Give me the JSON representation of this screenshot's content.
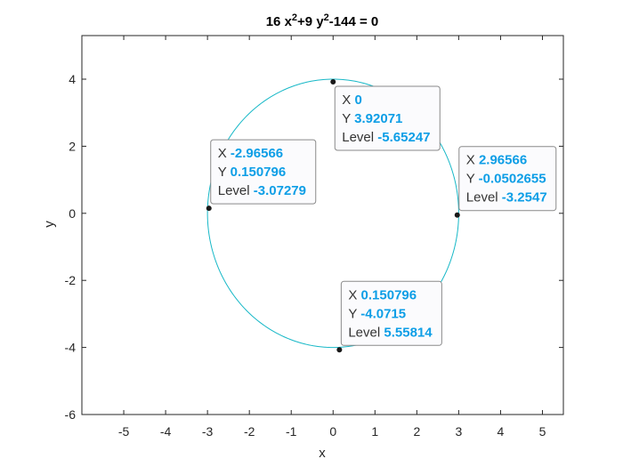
{
  "chart_data": {
    "type": "line",
    "title_parts": [
      {
        "text": "16 x",
        "sup": false
      },
      {
        "text": "2",
        "sup": true
      },
      {
        "text": "+9 y",
        "sup": false
      },
      {
        "text": "2",
        "sup": true
      },
      {
        "text": "-144 = 0",
        "sup": false
      }
    ],
    "xlabel": "x",
    "ylabel": "y",
    "xlim": [
      -6,
      5.5
    ],
    "ylim": [
      -6,
      5.3
    ],
    "xticks": [
      -5,
      -4,
      -3,
      -2,
      -1,
      0,
      1,
      2,
      3,
      4,
      5
    ],
    "yticks": [
      -6,
      -4,
      -2,
      0,
      2,
      4
    ],
    "curve": {
      "type": "ellipse",
      "cx": 0,
      "cy": 0,
      "rx": 3,
      "ry": 4,
      "color": "#17b8c7"
    },
    "datatips": [
      {
        "x": 0,
        "y": 3.92071,
        "rows": [
          {
            "key": "X",
            "value": "0"
          },
          {
            "key": "Y",
            "value": "3.92071"
          },
          {
            "key": "Level",
            "value": "-5.65247"
          }
        ],
        "placement": "below-right"
      },
      {
        "x": -2.96566,
        "y": 0.150796,
        "rows": [
          {
            "key": "X",
            "value": "-2.96566"
          },
          {
            "key": "Y",
            "value": "0.150796"
          },
          {
            "key": "Level",
            "value": "-3.07279"
          }
        ],
        "placement": "above-right"
      },
      {
        "x": 2.96566,
        "y": -0.0502655,
        "rows": [
          {
            "key": "X",
            "value": "2.96566"
          },
          {
            "key": "Y",
            "value": "-0.0502655"
          },
          {
            "key": "Level",
            "value": "-3.2547"
          }
        ],
        "placement": "above-right"
      },
      {
        "x": 0.150796,
        "y": -4.0715,
        "rows": [
          {
            "key": "X",
            "value": "0.150796"
          },
          {
            "key": "Y",
            "value": "-4.0715"
          },
          {
            "key": "Level",
            "value": "5.55814"
          }
        ],
        "placement": "above-right"
      }
    ],
    "grid": false,
    "colors": {
      "value_text": "#0d9ee6",
      "marker": "#1a1a1a",
      "axis": "#262626"
    }
  }
}
